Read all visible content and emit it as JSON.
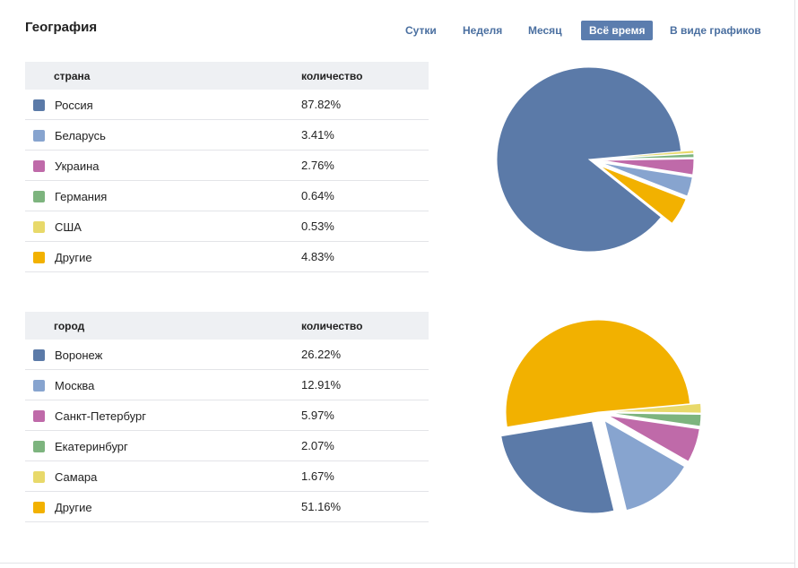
{
  "title": "География",
  "tabs": [
    {
      "label": "Сутки",
      "active": false
    },
    {
      "label": "Неделя",
      "active": false
    },
    {
      "label": "Месяц",
      "active": false
    },
    {
      "label": "Всё время",
      "active": true
    },
    {
      "label": "В виде графиков",
      "active": false
    }
  ],
  "colors": [
    "#5b7aa8",
    "#87a4cf",
    "#bf6aa9",
    "#7db47e",
    "#e8d96a",
    "#f2b100"
  ],
  "countries": {
    "header_name": "страна",
    "header_value": "количество",
    "rows": [
      {
        "name": "Россия",
        "value": "87.82%"
      },
      {
        "name": "Беларусь",
        "value": "3.41%"
      },
      {
        "name": "Украина",
        "value": "2.76%"
      },
      {
        "name": "Германия",
        "value": "0.64%"
      },
      {
        "name": "США",
        "value": "0.53%"
      },
      {
        "name": "Другие",
        "value": "4.83%"
      }
    ]
  },
  "cities": {
    "header_name": "город",
    "header_value": "количество",
    "rows": [
      {
        "name": "Воронеж",
        "value": "26.22%"
      },
      {
        "name": "Москва",
        "value": "12.91%"
      },
      {
        "name": "Санкт-Петербург",
        "value": "5.97%"
      },
      {
        "name": "Екатеринбург",
        "value": "2.07%"
      },
      {
        "name": "Самара",
        "value": "1.67%"
      },
      {
        "name": "Другие",
        "value": "51.16%"
      }
    ]
  },
  "chart_data": [
    {
      "type": "pie",
      "categories": [
        "Россия",
        "Беларусь",
        "Украина",
        "Германия",
        "США",
        "Другие"
      ],
      "values": [
        87.82,
        3.41,
        2.76,
        0.64,
        0.53,
        4.83
      ],
      "exploded": [
        false,
        true,
        true,
        true,
        true,
        true
      ]
    },
    {
      "type": "pie",
      "categories": [
        "Воронеж",
        "Москва",
        "Санкт-Петербург",
        "Екатеринбург",
        "Самара",
        "Другие"
      ],
      "values": [
        26.22,
        12.91,
        5.97,
        2.07,
        1.67,
        51.16
      ],
      "exploded": [
        true,
        true,
        true,
        true,
        true,
        false
      ]
    }
  ]
}
